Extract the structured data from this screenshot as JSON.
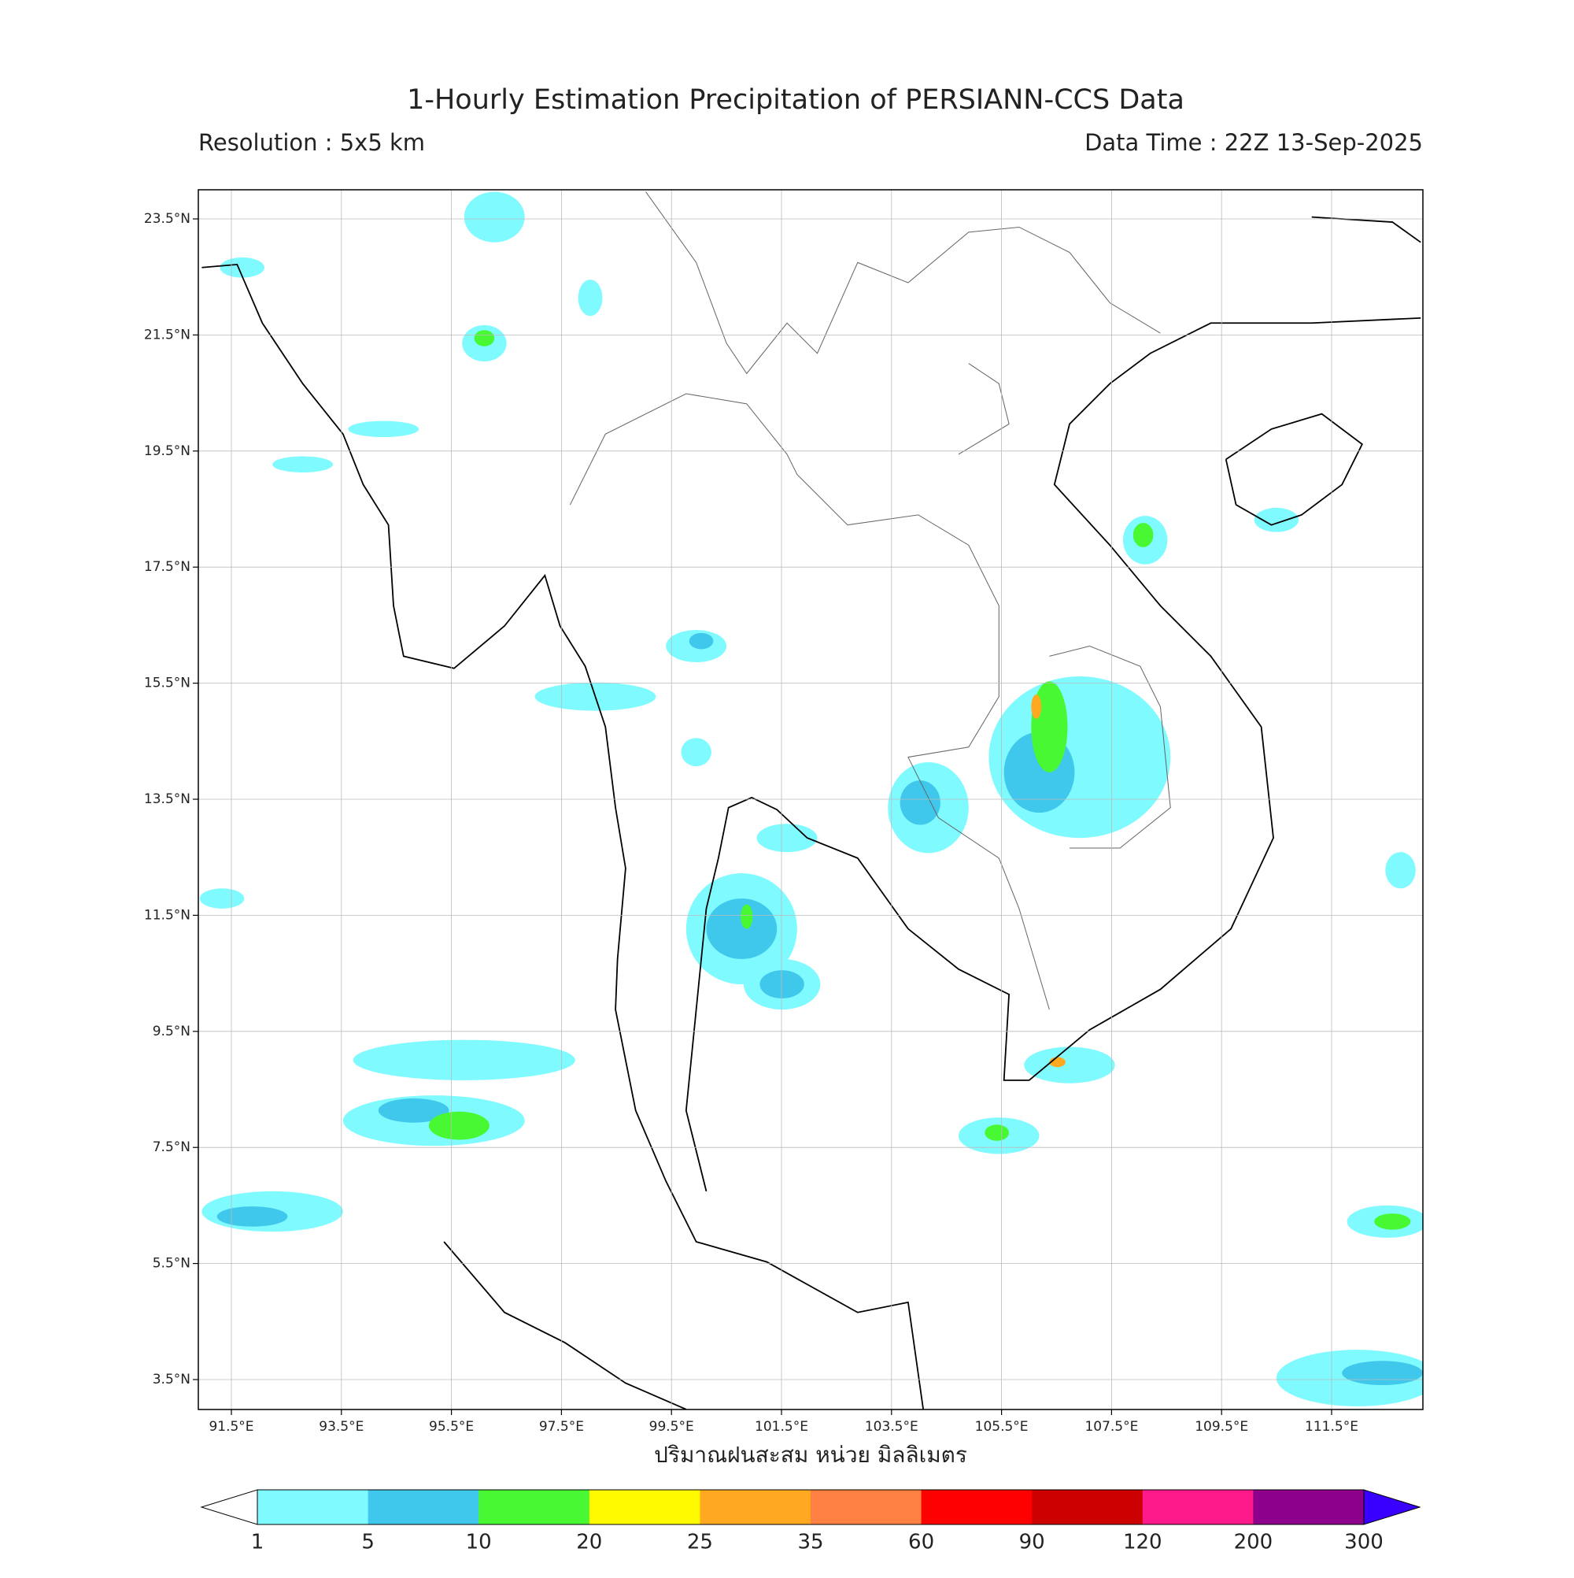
{
  "header": {
    "title": "1-Hourly Estimation Precipitation of PERSIANN-CCS Data",
    "resolution": "Resolution : 5x5 km",
    "data_time": "Data Time : 22Z 13-Sep-2025"
  },
  "map": {
    "lon_ticks": [
      "91.5°E",
      "93.5°E",
      "95.5°E",
      "97.5°E",
      "99.5°E",
      "101.5°E",
      "103.5°E",
      "105.5°E",
      "107.5°E",
      "109.5°E",
      "111.5°E"
    ],
    "lat_ticks": [
      "23.5°N",
      "21.5°N",
      "19.5°N",
      "17.5°N",
      "15.5°N",
      "13.5°N",
      "11.5°N",
      "9.5°N",
      "7.5°N",
      "5.5°N",
      "3.5°N"
    ],
    "grid": true
  },
  "colorbar": {
    "label": "ปริมาณฝนสะสม หน่วย มิลลิเมตร",
    "levels": [
      "1",
      "5",
      "10",
      "20",
      "25",
      "35",
      "60",
      "90",
      "120",
      "200",
      "300"
    ],
    "colors": [
      "#7ffaff",
      "#40c8ec",
      "#48f832",
      "#fffa00",
      "#ffa820",
      "#ff8040",
      "#ff0000",
      "#cc0000",
      "#ff1a8c",
      "#8c008c"
    ],
    "over_color": "#3a00ff",
    "under_color": "#ffffff"
  }
}
